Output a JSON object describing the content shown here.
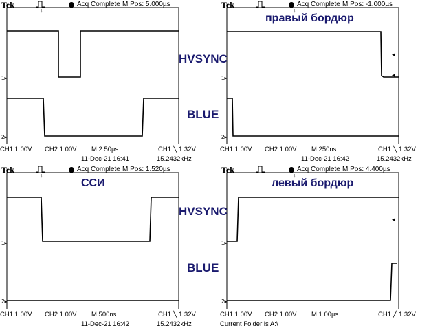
{
  "brand": "Tek",
  "colors": {
    "ink": "#000000",
    "label": "#1a1a6e",
    "grid": "#000000"
  },
  "icons": {
    "trigger": "trigger-pulse-icon",
    "status": "acq-dot-icon"
  },
  "panels": [
    {
      "status": "Acq Complete",
      "mpos": "M Pos: 5.000µs",
      "ch1": "CH1  1.00V",
      "ch2": "CH2  1.00V",
      "timebase": "M 2.50µs",
      "trigger": "CH1 ╲ 1.32V",
      "date": "11-Dec-21 16:41",
      "freq": "15.2432kHz",
      "caption": ""
    },
    {
      "status": "Acq Complete",
      "mpos": "M Pos: -1.000µs",
      "ch1": "CH1  1.00V",
      "ch2": "CH2  1.00V",
      "timebase": "M 250ns",
      "trigger": "CH1 ╲ 1.32V",
      "date": "11-Dec-21 16:42",
      "freq": "15.2432kHz",
      "caption": "правый бордюр"
    },
    {
      "status": "Acq Complete",
      "mpos": "M Pos: 1.520µs",
      "ch1": "CH1  1.00V",
      "ch2": "CH2  1.00V",
      "timebase": "M 500ns",
      "trigger": "CH1 ╲ 1.32V",
      "date": "11-Dec-21 16:42",
      "freq": "15.2432kHz",
      "caption": "ССИ"
    },
    {
      "status": "Acq Complete",
      "mpos": "M Pos: 4.400µs",
      "ch1": "CH1  1.00V",
      "ch2": "CH2  1.00V",
      "timebase": "M 1.00µs",
      "trigger": "CH1 ╱ 1.32V",
      "date": "",
      "freq": "",
      "folder": "Current Folder is A:\\",
      "caption": "левый бордюр"
    }
  ],
  "labels": {
    "hvsync": "HVSYNC",
    "blue": "BLUE"
  },
  "markers": {
    "ch1": "1",
    "ch2": "2"
  }
}
